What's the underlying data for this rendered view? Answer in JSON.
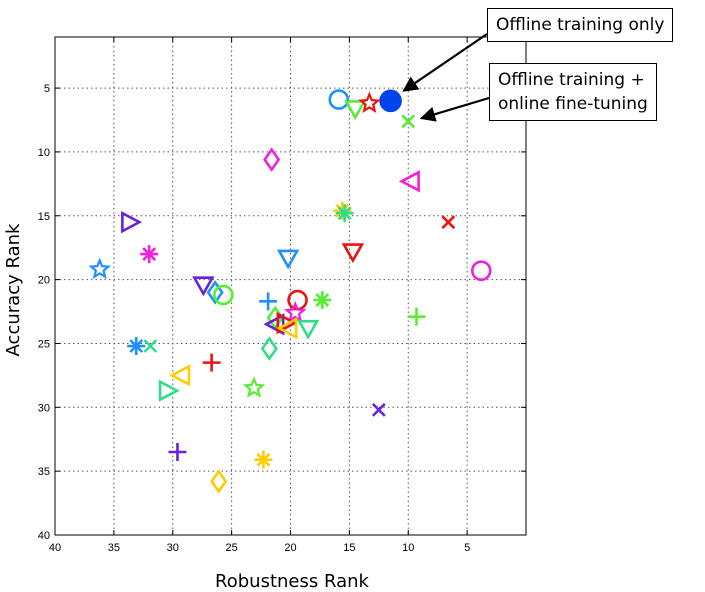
{
  "chart_data": {
    "type": "scatter",
    "title": "",
    "xlabel": "Robustness Rank",
    "ylabel": "Accuracy Rank",
    "xlim": [
      40,
      0
    ],
    "ylim": [
      40,
      1
    ],
    "x_reversed": true,
    "y_reversed": true,
    "grid": true,
    "x_ticks": [
      40,
      35,
      30,
      25,
      20,
      15,
      10,
      5
    ],
    "y_ticks": [
      5,
      10,
      15,
      20,
      25,
      30,
      35,
      40
    ],
    "points": [
      {
        "x": 11.5,
        "y": 6.0,
        "marker": "filled-circle",
        "color": "#0044ee"
      },
      {
        "x": 15.9,
        "y": 5.9,
        "marker": "circle",
        "color": "#1e90ff"
      },
      {
        "x": 14.5,
        "y": 6.6,
        "marker": "triangle-down",
        "color": "#55ee33"
      },
      {
        "x": 13.3,
        "y": 6.2,
        "marker": "star",
        "color": "#ee1111"
      },
      {
        "x": 10.0,
        "y": 7.6,
        "marker": "x",
        "color": "#55ee33"
      },
      {
        "x": 21.6,
        "y": 10.6,
        "marker": "diamond",
        "color": "#ee22dd"
      },
      {
        "x": 9.8,
        "y": 12.3,
        "marker": "triangle-left",
        "color": "#ee22dd"
      },
      {
        "x": 15.6,
        "y": 14.6,
        "marker": "asterisk",
        "color": "#ffcc00"
      },
      {
        "x": 15.4,
        "y": 14.8,
        "marker": "asterisk",
        "color": "#33dd88"
      },
      {
        "x": 6.6,
        "y": 15.5,
        "marker": "x",
        "color": "#ee1111"
      },
      {
        "x": 33.6,
        "y": 15.5,
        "marker": "triangle-right",
        "color": "#6622dd"
      },
      {
        "x": 14.7,
        "y": 17.8,
        "marker": "triangle-down",
        "color": "#ee1111"
      },
      {
        "x": 32.0,
        "y": 18.0,
        "marker": "asterisk",
        "color": "#ee22dd"
      },
      {
        "x": 20.2,
        "y": 18.3,
        "marker": "triangle-down",
        "color": "#1e90ff"
      },
      {
        "x": 36.2,
        "y": 19.2,
        "marker": "star",
        "color": "#1e90ff"
      },
      {
        "x": 3.8,
        "y": 19.3,
        "marker": "circle",
        "color": "#ee22dd"
      },
      {
        "x": 27.4,
        "y": 20.4,
        "marker": "triangle-down",
        "color": "#6622dd"
      },
      {
        "x": 26.4,
        "y": 21.0,
        "marker": "diamond",
        "color": "#1e90ff"
      },
      {
        "x": 25.7,
        "y": 21.2,
        "marker": "circle",
        "color": "#55ee33"
      },
      {
        "x": 21.9,
        "y": 21.7,
        "marker": "plus",
        "color": "#1e90ff"
      },
      {
        "x": 19.4,
        "y": 21.6,
        "marker": "circle",
        "color": "#ee1111"
      },
      {
        "x": 17.3,
        "y": 21.6,
        "marker": "asterisk",
        "color": "#55ee33"
      },
      {
        "x": 19.6,
        "y": 22.6,
        "marker": "star",
        "color": "#ee22dd"
      },
      {
        "x": 21.3,
        "y": 23.0,
        "marker": "diamond",
        "color": "#55ee33"
      },
      {
        "x": 9.3,
        "y": 22.9,
        "marker": "plus",
        "color": "#55ee33"
      },
      {
        "x": 21.3,
        "y": 23.5,
        "marker": "triangle-left",
        "color": "#6622dd"
      },
      {
        "x": 20.4,
        "y": 23.4,
        "marker": "triangle-right",
        "color": "#ee1111"
      },
      {
        "x": 20.2,
        "y": 23.8,
        "marker": "triangle-left",
        "color": "#ffcc00"
      },
      {
        "x": 18.5,
        "y": 23.8,
        "marker": "triangle-down",
        "color": "#33dd88"
      },
      {
        "x": 33.1,
        "y": 25.2,
        "marker": "asterisk",
        "color": "#1e90ff"
      },
      {
        "x": 31.9,
        "y": 25.2,
        "marker": "x",
        "color": "#33dd88"
      },
      {
        "x": 21.8,
        "y": 25.4,
        "marker": "diamond",
        "color": "#33dd88"
      },
      {
        "x": 26.7,
        "y": 26.5,
        "marker": "plus",
        "color": "#ee1111"
      },
      {
        "x": 29.3,
        "y": 27.5,
        "marker": "triangle-left",
        "color": "#ffcc00"
      },
      {
        "x": 23.1,
        "y": 28.5,
        "marker": "star",
        "color": "#55ee33"
      },
      {
        "x": 30.4,
        "y": 28.7,
        "marker": "triangle-right",
        "color": "#33dd88"
      },
      {
        "x": 12.5,
        "y": 30.2,
        "marker": "x",
        "color": "#6622dd"
      },
      {
        "x": 29.6,
        "y": 33.5,
        "marker": "plus",
        "color": "#6622dd"
      },
      {
        "x": 22.3,
        "y": 34.1,
        "marker": "asterisk",
        "color": "#ffcc00"
      },
      {
        "x": 26.1,
        "y": 35.8,
        "marker": "diamond",
        "color": "#ffcc00"
      }
    ],
    "annotations": [
      {
        "text": "Offline training only",
        "points_to": {
          "x": 11.5,
          "y": 6.0
        }
      },
      {
        "text_lines": [
          "Offline training +",
          "online fine-tuning"
        ],
        "points_to": {
          "x": 10.0,
          "y": 7.6
        }
      }
    ]
  }
}
